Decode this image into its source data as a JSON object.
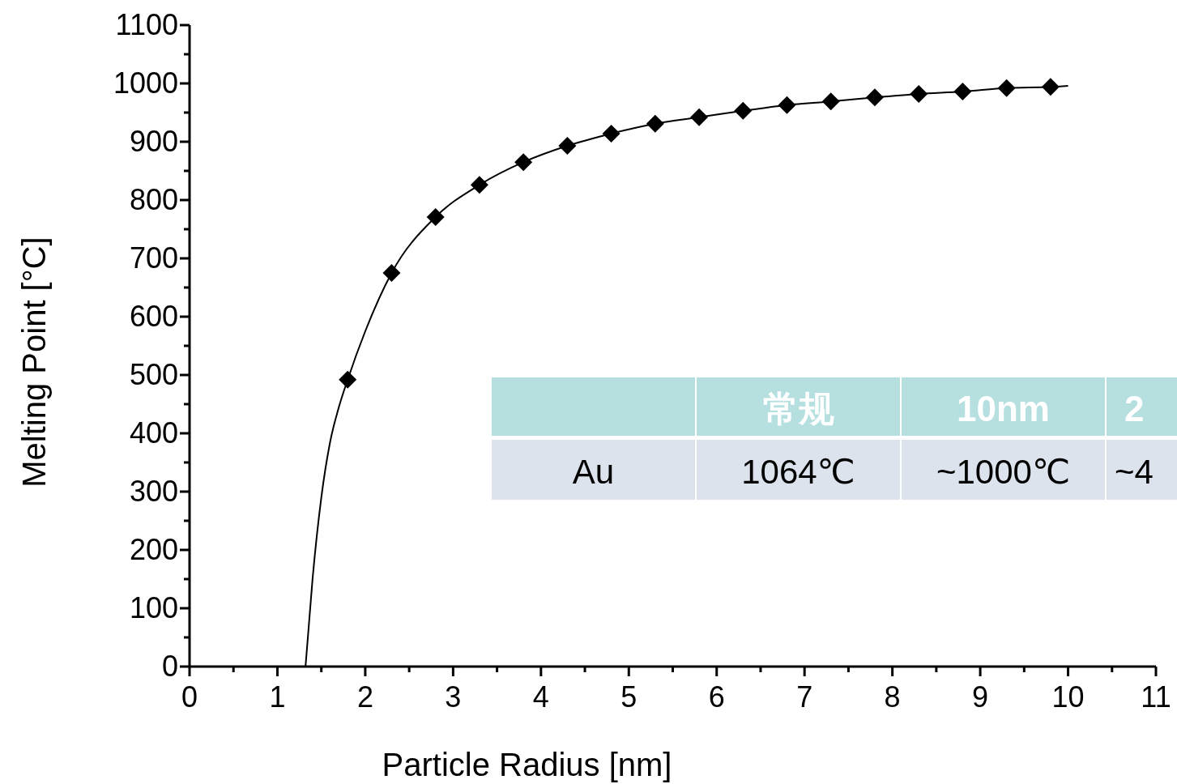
{
  "chart_data": {
    "type": "scatter",
    "xlabel": "Particle Radius [nm]",
    "ylabel": "Melting Point [°C]",
    "xlim": [
      0,
      11
    ],
    "ylim": [
      0,
      1100
    ],
    "xticks": [
      0,
      {
        "value": 0.5,
        "label": null
      },
      1,
      {
        "value": 1.5,
        "label": null
      },
      2,
      {
        "value": 2.5,
        "label": null
      },
      3,
      {
        "value": 3.5,
        "label": null
      },
      4,
      {
        "value": 4.5,
        "label": null
      },
      5,
      {
        "value": 5.5,
        "label": null
      },
      6,
      {
        "value": 6.5,
        "label": null
      },
      7,
      {
        "value": 7.5,
        "label": null
      },
      8,
      {
        "value": 8.5,
        "label": null
      },
      9,
      {
        "value": 9.5,
        "label": null
      },
      10,
      {
        "value": 10.5,
        "label": null
      },
      11
    ],
    "yticks": [
      0,
      {
        "value": 50,
        "label": null
      },
      100,
      {
        "value": 150,
        "label": null
      },
      200,
      {
        "value": 250,
        "label": null
      },
      300,
      {
        "value": 350,
        "label": null
      },
      400,
      {
        "value": 450,
        "label": null
      },
      500,
      {
        "value": 550,
        "label": null
      },
      600,
      {
        "value": 650,
        "label": null
      },
      700,
      {
        "value": 750,
        "label": null
      },
      800,
      {
        "value": 850,
        "label": null
      },
      900,
      {
        "value": 950,
        "label": null
      },
      1000,
      {
        "value": 1050,
        "label": null
      },
      1100
    ],
    "grid": false,
    "series": [
      {
        "type": "line",
        "marker": "none",
        "color": "#000000",
        "x": [
          1.32,
          1.4,
          1.5,
          1.6,
          1.7,
          1.8,
          2.0,
          2.3,
          2.8,
          3.3,
          3.8,
          4.3,
          4.8,
          5.3,
          5.8,
          6.3,
          6.8,
          7.3,
          7.8,
          8.3,
          8.8,
          9.3,
          9.8,
          10.0
        ],
        "values": [
          0,
          150,
          290,
          385,
          445,
          492,
          575,
          675,
          771,
          826,
          865,
          893,
          914,
          931,
          942,
          953,
          963,
          969,
          976,
          982,
          986,
          992,
          994,
          996
        ]
      },
      {
        "marker": "diamond",
        "color": "#000000",
        "x": [
          1.8,
          2.3,
          2.8,
          3.3,
          3.8,
          4.3,
          4.8,
          5.3,
          5.8,
          6.3,
          6.8,
          7.3,
          7.8,
          8.3,
          8.8,
          9.3,
          9.8
        ],
        "values": [
          492,
          675,
          771,
          826,
          865,
          893,
          914,
          931,
          942,
          953,
          963,
          969,
          976,
          982,
          986,
          992,
          994
        ]
      }
    ],
    "annotations": [
      "常规",
      "10nm",
      "2",
      "Au",
      "1064℃",
      "~1000℃",
      "~4"
    ]
  }
}
